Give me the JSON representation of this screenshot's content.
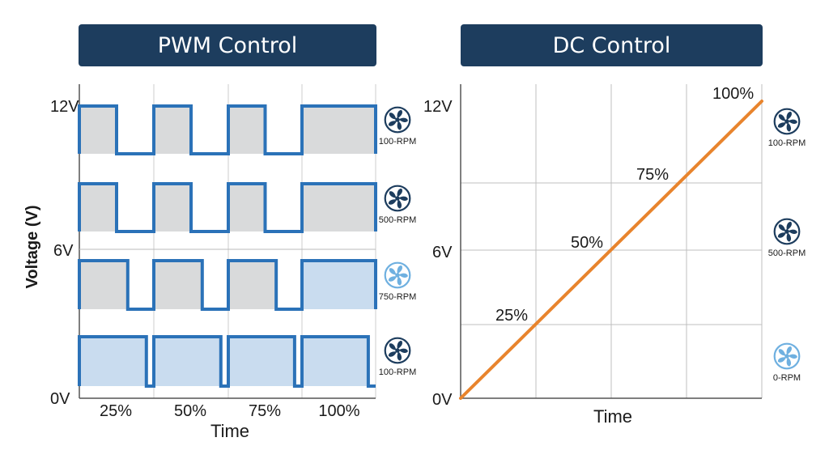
{
  "pwm": {
    "title": "PWM Control",
    "ylabel": "Voltage (V)",
    "xlabel": "Time",
    "y_ticks": [
      "12V",
      "6V",
      "0V"
    ],
    "x_ticks": [
      "25%",
      "50%",
      "75%",
      "100%"
    ],
    "rows": [
      {
        "fan_label": "100-RPM",
        "fan_icon": "fan-icon",
        "duty": 0.5
      },
      {
        "fan_label": "500-RPM",
        "fan_icon": "fan-icon",
        "duty": 0.5
      },
      {
        "fan_label": "750-RPM",
        "fan_icon": "fan-icon",
        "duty": 0.65
      },
      {
        "fan_label": "100-RPM",
        "fan_icon": "fan-icon",
        "duty": 0.9
      }
    ]
  },
  "dc": {
    "title": "DC Control",
    "xlabel": "Time",
    "y_ticks": [
      "12V",
      "6V",
      "0V"
    ],
    "line_points": [
      {
        "label": "25%",
        "voltage": 3
      },
      {
        "label": "50%",
        "voltage": 6
      },
      {
        "label": "75%",
        "voltage": 9
      },
      {
        "label": "100%",
        "voltage": 12
      }
    ],
    "fans": [
      {
        "fan_label": "100-RPM",
        "fan_icon": "fan-icon"
      },
      {
        "fan_label": "500-RPM",
        "fan_icon": "fan-icon"
      },
      {
        "fan_label": "0-RPM",
        "fan_icon": "fan-icon"
      }
    ]
  },
  "colors": {
    "header_bg": "#1d3d5e",
    "wave": "#2b72b8",
    "fill_gray": "#d9dadb",
    "fill_blue": "#c9dcef",
    "dc_line": "#e8842d",
    "grid": "#bfbfbf",
    "fan_dark": "#1d3d5e",
    "fan_light": "#6fb0e0"
  }
}
